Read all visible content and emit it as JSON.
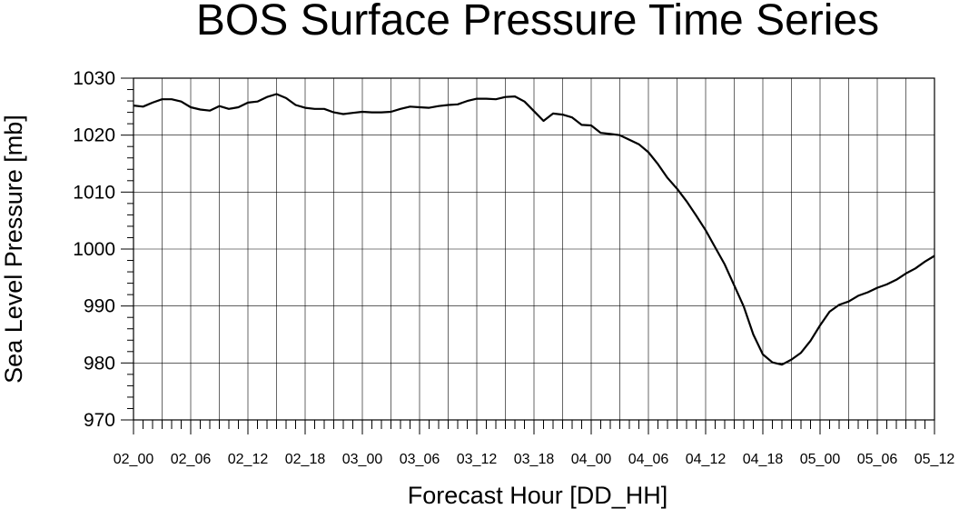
{
  "chart_data": {
    "type": "line",
    "title": "BOS Surface Pressure Time Series",
    "xlabel": "Forecast Hour [DD_HH]",
    "ylabel": "Sea Level Pressure [mb]",
    "ylim": [
      970,
      1030
    ],
    "yticks": [
      "970",
      "980",
      "990",
      "1000",
      "1010",
      "1020",
      "1030"
    ],
    "xlim": [
      0,
      84
    ],
    "xtick_labels": [
      "02_00",
      "02_06",
      "02_12",
      "02_18",
      "03_00",
      "03_06",
      "03_12",
      "03_18",
      "04_00",
      "04_06",
      "04_12",
      "04_18",
      "05_00",
      "05_06",
      "05_12"
    ],
    "grid": true,
    "series": [
      {
        "x": [
          0,
          1,
          2,
          3,
          4,
          5,
          6,
          7,
          8,
          9,
          10,
          11,
          12,
          13,
          14,
          15,
          16,
          17,
          18,
          19,
          20,
          21,
          22,
          23,
          24,
          25,
          26,
          27,
          28,
          29,
          30,
          31,
          32,
          33,
          34,
          35,
          36,
          37,
          38,
          39,
          40,
          41,
          42,
          43,
          44,
          45,
          46,
          47,
          48,
          49,
          50,
          51,
          52,
          53,
          54,
          55,
          56,
          57,
          58,
          59,
          60,
          61,
          62,
          63,
          64,
          65,
          66,
          67,
          68,
          69,
          70,
          71,
          72,
          73,
          74,
          75,
          76,
          77,
          78,
          79,
          80,
          81,
          82,
          83,
          84
        ],
        "values": [
          1025.2,
          1025.0,
          1025.7,
          1026.3,
          1026.3,
          1025.9,
          1024.9,
          1024.5,
          1024.3,
          1025.1,
          1024.6,
          1024.9,
          1025.7,
          1025.9,
          1026.7,
          1027.2,
          1026.5,
          1025.3,
          1024.8,
          1024.6,
          1024.6,
          1024.0,
          1023.7,
          1023.9,
          1024.1,
          1024.0,
          1024.0,
          1024.1,
          1024.6,
          1025.0,
          1024.9,
          1024.8,
          1025.1,
          1025.3,
          1025.4,
          1026.0,
          1026.4,
          1026.4,
          1026.3,
          1026.7,
          1026.8,
          1025.9,
          1024.2,
          1022.5,
          1023.8,
          1023.6,
          1023.1,
          1021.8,
          1021.7,
          1020.4,
          1020.2,
          1020.0,
          1019.2,
          1018.4,
          1017.0,
          1014.9,
          1012.5,
          1010.6,
          1008.4,
          1005.9,
          1003.3,
          1000.3,
          997.3,
          993.6,
          989.9,
          985.0,
          981.5,
          980.1,
          979.7,
          980.6,
          981.8,
          983.9,
          986.6,
          989.0,
          990.2,
          990.8,
          991.8,
          992.4,
          993.2,
          993.8,
          994.6,
          995.7,
          996.6,
          997.8,
          998.8
        ]
      }
    ]
  }
}
